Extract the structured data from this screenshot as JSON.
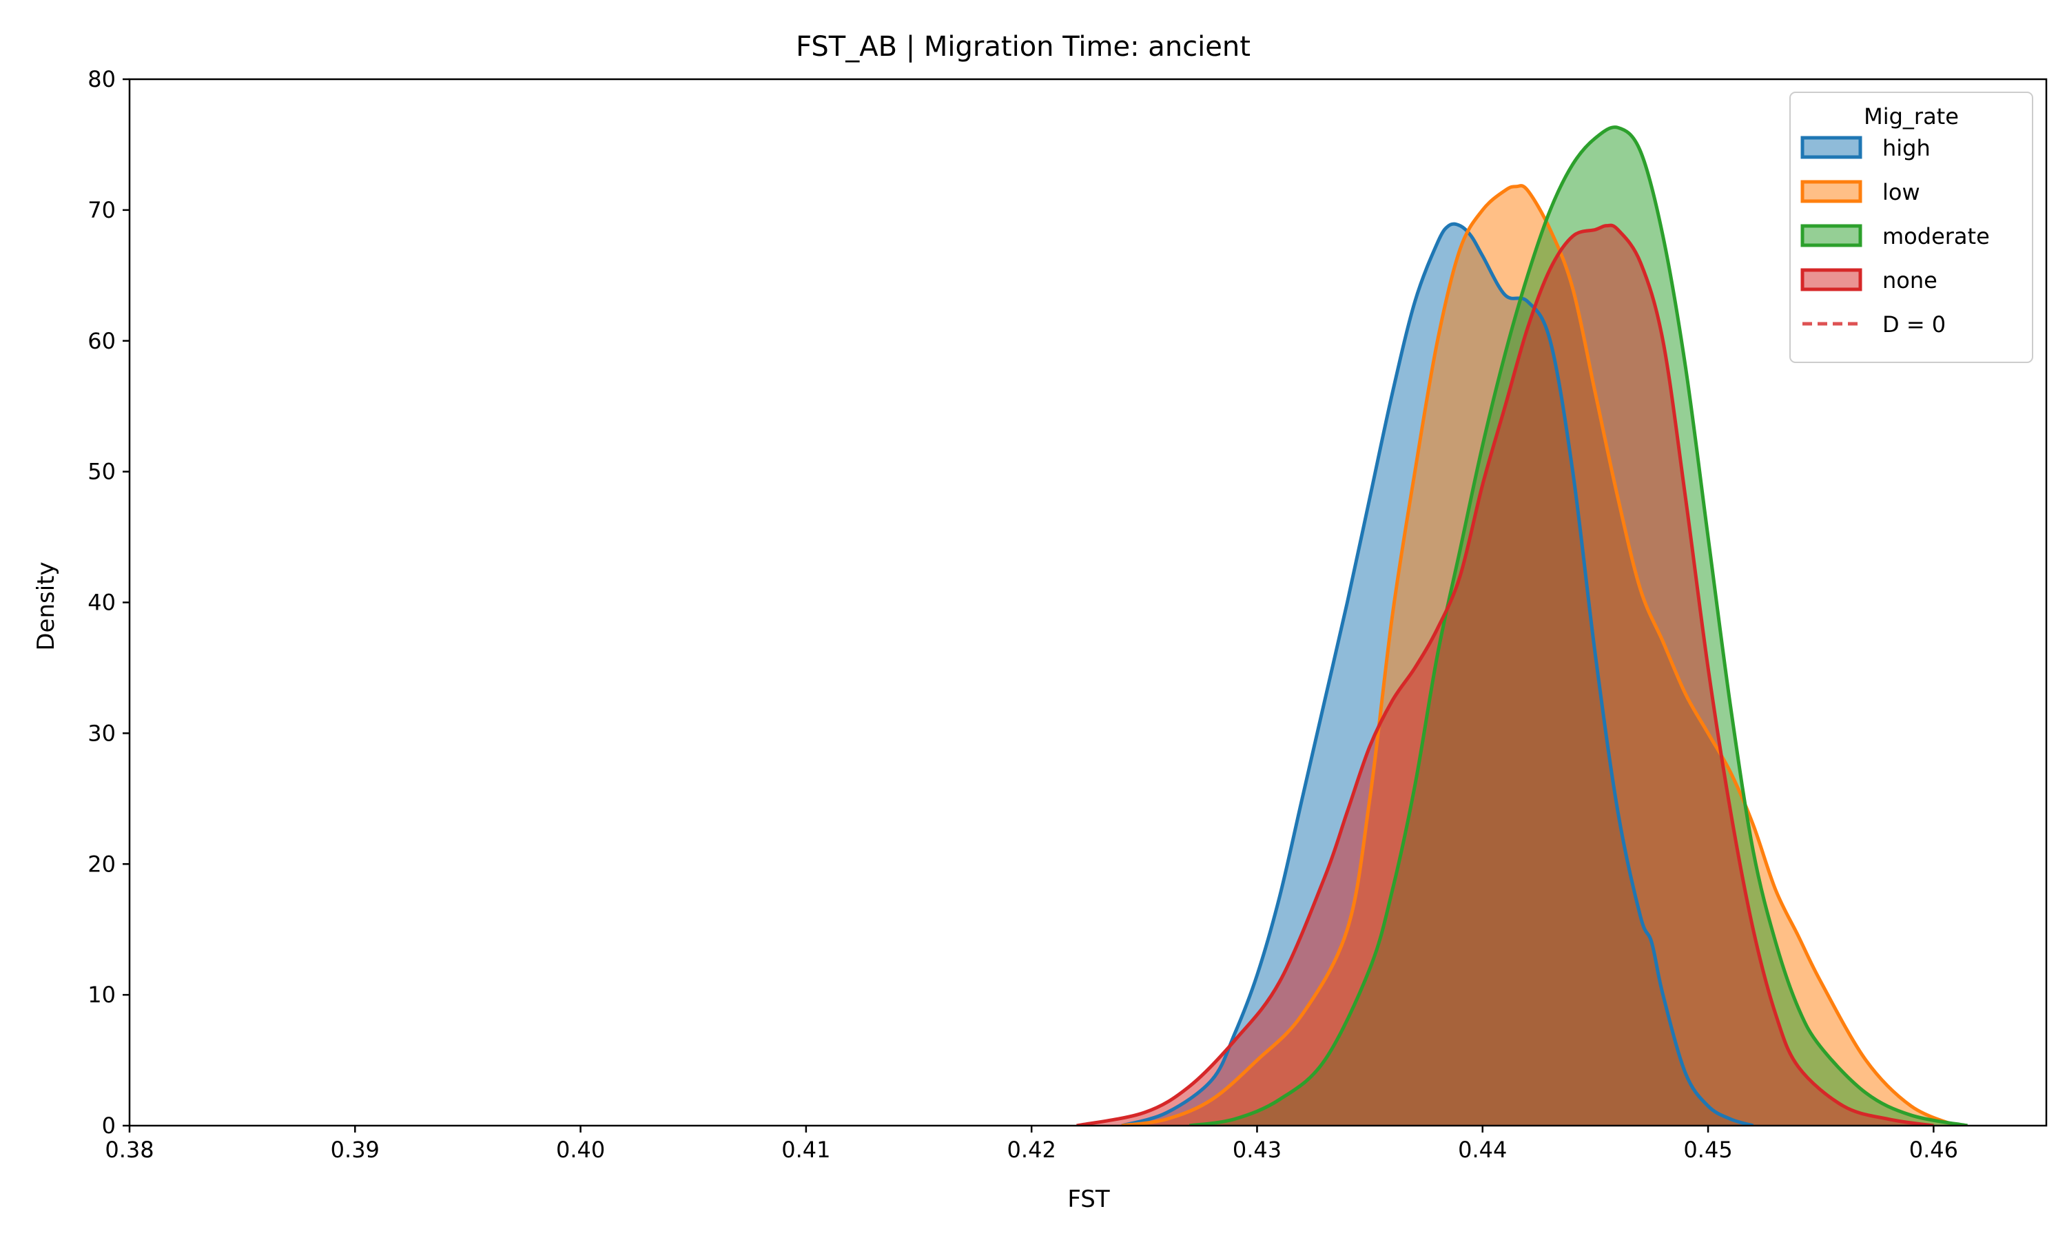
{
  "chart_data": {
    "type": "area",
    "title": "FST_AB | Migration Time: ancient",
    "xlabel": "FST",
    "ylabel": "Density",
    "xlim": [
      0.38,
      0.465
    ],
    "ylim": [
      0,
      80
    ],
    "xticks": [
      0.38,
      0.39,
      0.4,
      0.41,
      0.42,
      0.43,
      0.44,
      0.45,
      0.46
    ],
    "xtick_labels": [
      "0.38",
      "0.39",
      "0.40",
      "0.41",
      "0.42",
      "0.43",
      "0.44",
      "0.45",
      "0.46"
    ],
    "yticks": [
      0,
      10,
      20,
      30,
      40,
      50,
      60,
      70,
      80
    ],
    "ytick_labels": [
      "0",
      "10",
      "20",
      "30",
      "40",
      "50",
      "60",
      "70",
      "80"
    ],
    "grid": false,
    "legend": {
      "title": "Mig_rate",
      "placement": "top-right",
      "entries": [
        {
          "label": "high",
          "color": "#1f77b4",
          "kind": "patch"
        },
        {
          "label": "low",
          "color": "#ff7f0e",
          "kind": "patch"
        },
        {
          "label": "moderate",
          "color": "#2ca02c",
          "kind": "patch"
        },
        {
          "label": "none",
          "color": "#d62728",
          "kind": "patch"
        },
        {
          "label": "D = 0",
          "color": "#d62728",
          "kind": "dashed-line"
        }
      ]
    },
    "series": [
      {
        "name": "high",
        "color": "#1f77b4",
        "x": [
          0.424,
          0.426,
          0.428,
          0.429,
          0.43,
          0.431,
          0.432,
          0.433,
          0.434,
          0.435,
          0.436,
          0.437,
          0.438,
          0.4385,
          0.439,
          0.4395,
          0.44,
          0.441,
          0.442,
          0.443,
          0.444,
          0.445,
          0.446,
          0.447,
          0.4475,
          0.448,
          0.449,
          0.45,
          0.451,
          0.452
        ],
        "y": [
          0,
          1.0,
          3.5,
          7.0,
          11.5,
          17.5,
          25.0,
          32.5,
          40.0,
          48.0,
          56.0,
          63.0,
          67.5,
          68.8,
          68.8,
          68.0,
          66.5,
          63.5,
          63.0,
          60.0,
          50.0,
          36.0,
          24.0,
          16.0,
          14.0,
          10.0,
          4.0,
          1.5,
          0.5,
          0
        ]
      },
      {
        "name": "low",
        "color": "#ff7f0e",
        "x": [
          0.424,
          0.426,
          0.428,
          0.43,
          0.432,
          0.434,
          0.435,
          0.436,
          0.437,
          0.438,
          0.439,
          0.44,
          0.441,
          0.4415,
          0.442,
          0.443,
          0.444,
          0.445,
          0.446,
          0.447,
          0.448,
          0.449,
          0.45,
          0.451,
          0.452,
          0.453,
          0.454,
          0.455,
          0.457,
          0.459,
          0.461
        ],
        "y": [
          0,
          0.5,
          2.0,
          5.0,
          8.5,
          15.0,
          25.0,
          39.0,
          50.0,
          60.0,
          67.0,
          70.0,
          71.5,
          71.8,
          71.5,
          68.5,
          64.0,
          56.0,
          48.0,
          41.0,
          37.0,
          33.0,
          30.0,
          27.0,
          23.0,
          18.0,
          14.5,
          11.0,
          5.0,
          1.5,
          0
        ]
      },
      {
        "name": "moderate",
        "color": "#2ca02c",
        "x": [
          0.427,
          0.429,
          0.431,
          0.433,
          0.435,
          0.436,
          0.437,
          0.438,
          0.439,
          0.44,
          0.441,
          0.442,
          0.443,
          0.444,
          0.445,
          0.446,
          0.447,
          0.448,
          0.449,
          0.45,
          0.451,
          0.452,
          0.453,
          0.454,
          0.455,
          0.457,
          0.459,
          0.4615
        ],
        "y": [
          0,
          0.5,
          2.0,
          5.0,
          12.0,
          18.0,
          26.0,
          36.0,
          44.0,
          52.0,
          59.0,
          65.0,
          70.0,
          73.5,
          75.5,
          76.3,
          74.5,
          68.0,
          58.0,
          45.0,
          32.0,
          21.0,
          14.0,
          9.0,
          6.0,
          2.5,
          0.8,
          0
        ]
      },
      {
        "name": "none",
        "color": "#d62728",
        "x": [
          0.422,
          0.425,
          0.427,
          0.429,
          0.431,
          0.433,
          0.434,
          0.435,
          0.436,
          0.437,
          0.438,
          0.439,
          0.44,
          0.441,
          0.442,
          0.443,
          0.444,
          0.445,
          0.4455,
          0.446,
          0.447,
          0.448,
          0.449,
          0.45,
          0.451,
          0.452,
          0.453,
          0.454,
          0.456,
          0.458,
          0.46
        ],
        "y": [
          0,
          1.0,
          3.0,
          6.5,
          11.0,
          19.0,
          24.0,
          29.0,
          32.5,
          35.0,
          38.0,
          42.0,
          49.0,
          55.0,
          61.0,
          65.5,
          68.0,
          68.5,
          68.8,
          68.5,
          66.0,
          60.0,
          48.0,
          35.0,
          24.0,
          15.0,
          8.5,
          4.5,
          1.5,
          0.5,
          0
        ]
      }
    ]
  }
}
